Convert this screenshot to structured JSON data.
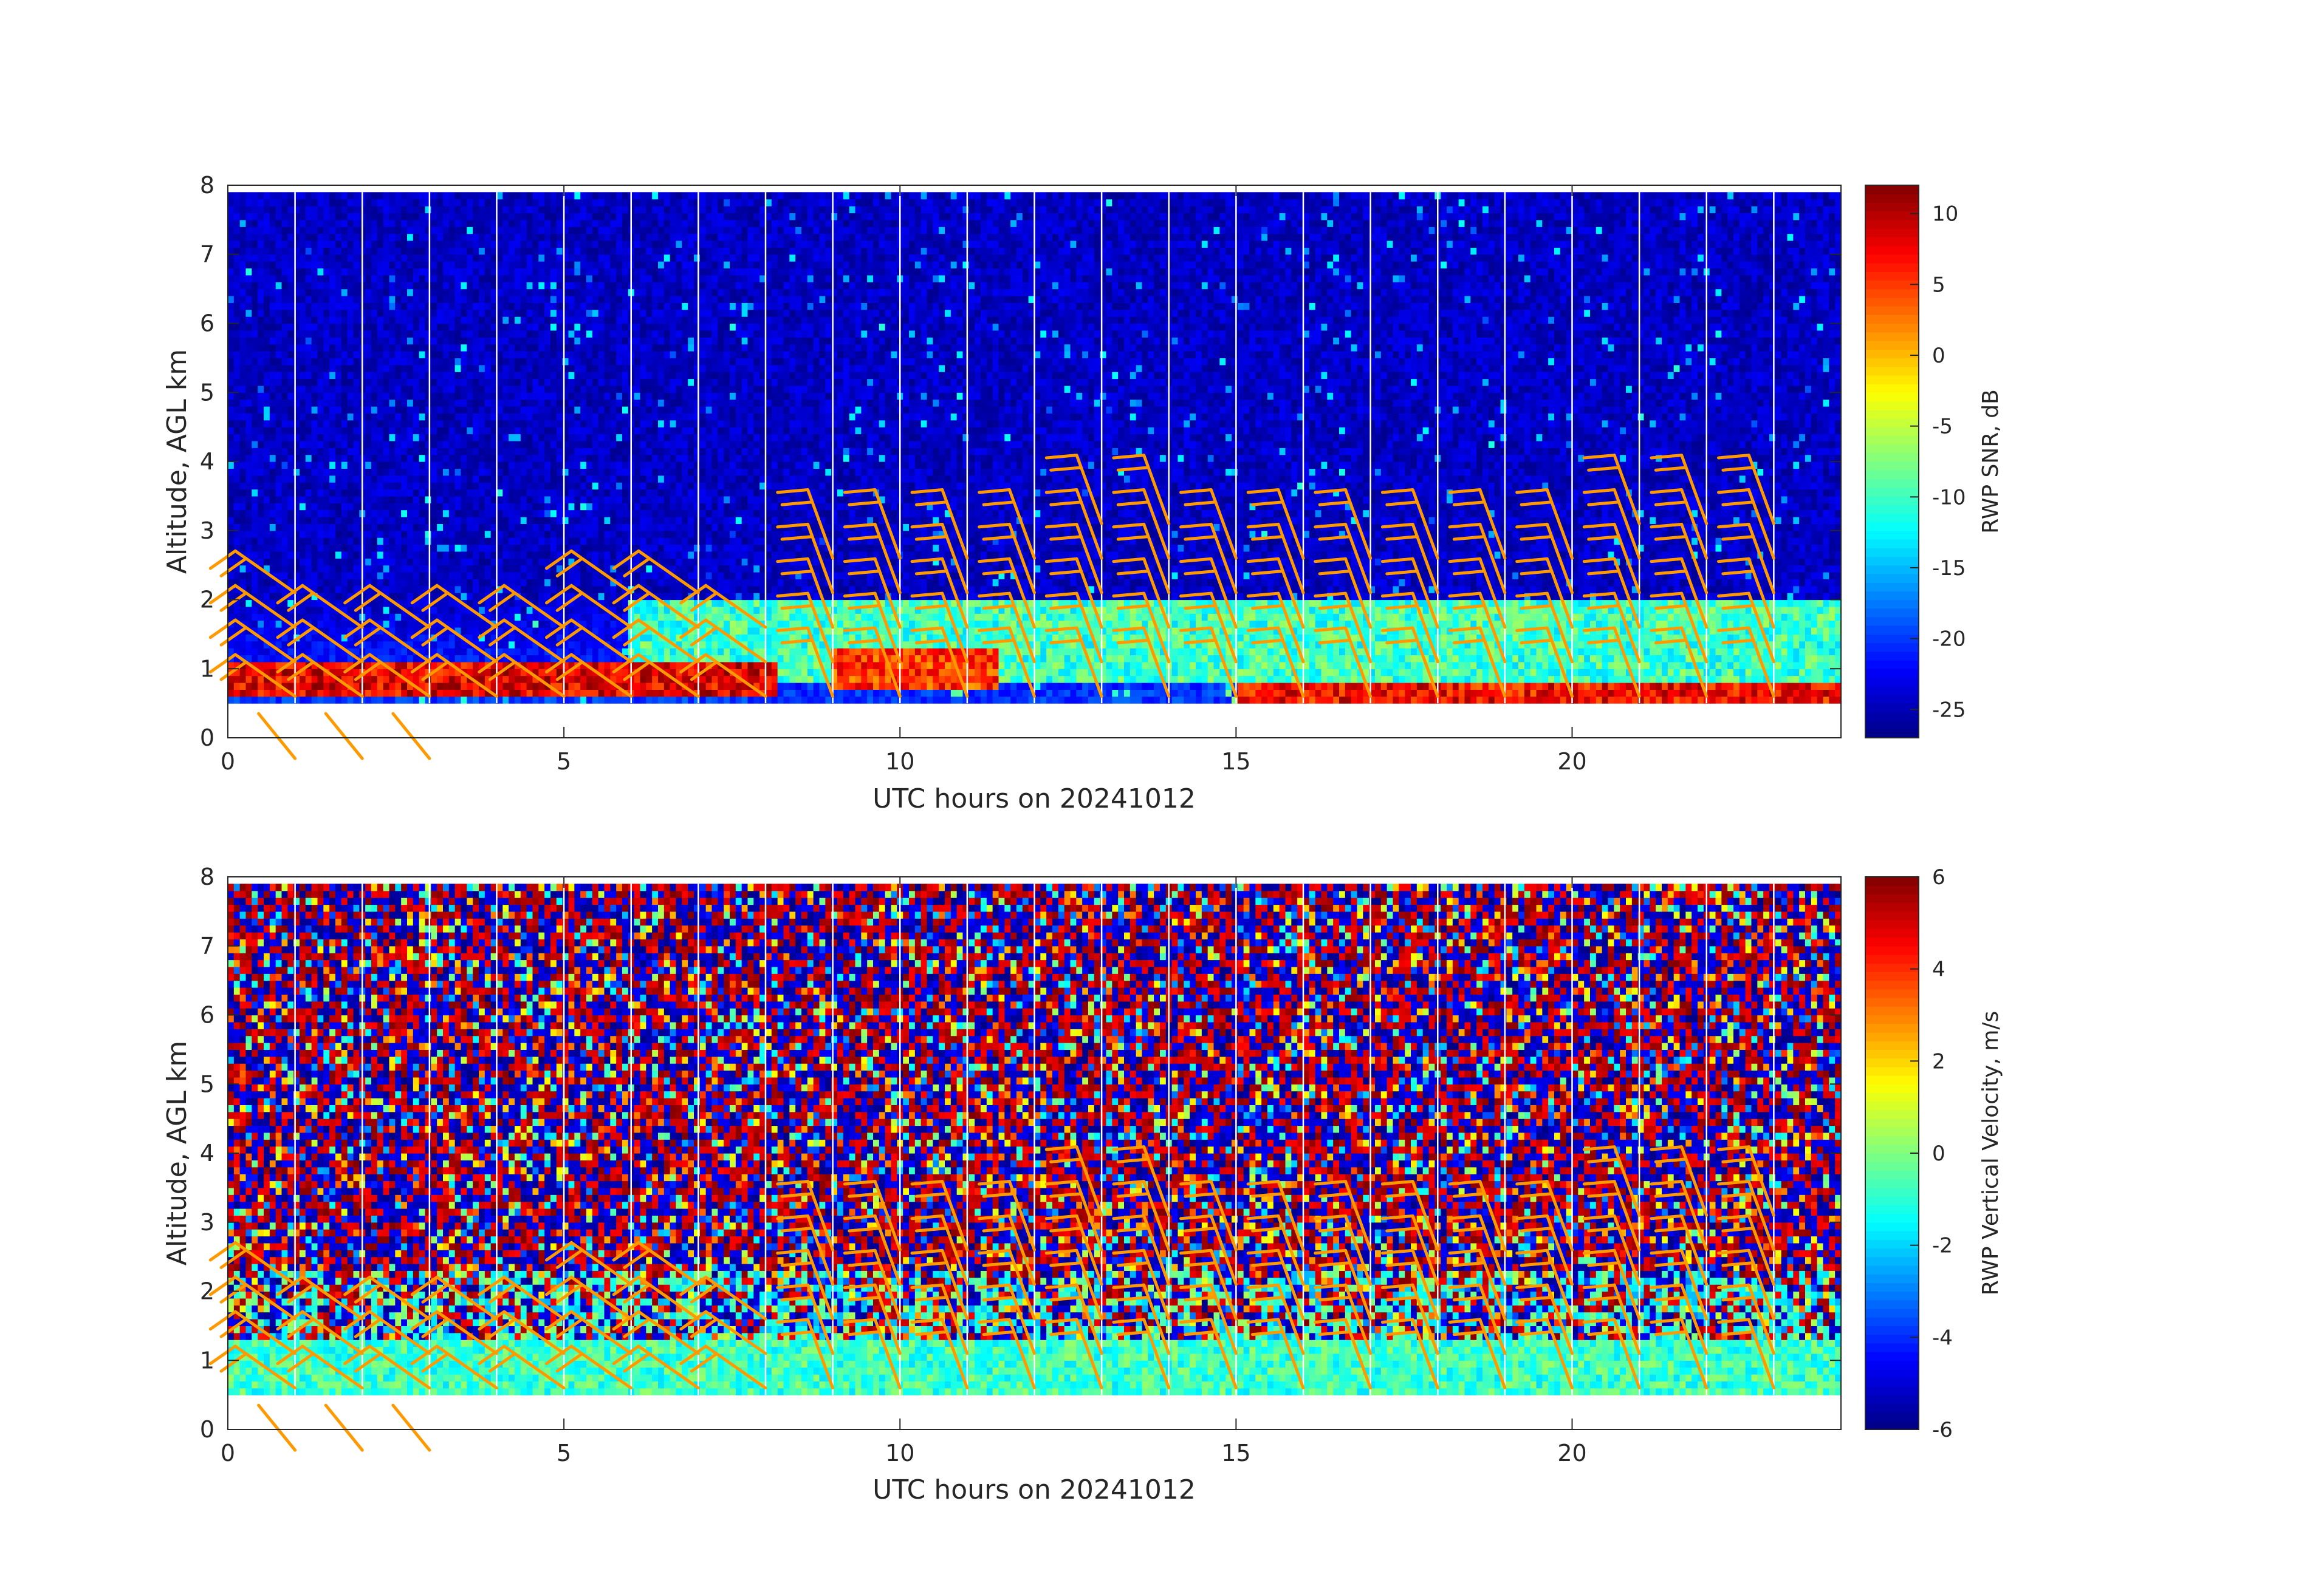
{
  "chart_data": [
    {
      "type": "heatmap",
      "variable": "snr",
      "xlabel": "UTC hours on 20241012",
      "ylabel": "Altitude, AGL km",
      "colorbar_label": "RWP SNR, dB",
      "xlim": [
        0,
        24
      ],
      "ylim": [
        0,
        8
      ],
      "xticks": [
        "0",
        "5",
        "10",
        "15",
        "20"
      ],
      "yticks": [
        "0",
        "1",
        "2",
        "3",
        "4",
        "5",
        "6",
        "7",
        "8"
      ],
      "clim": [
        -27,
        12
      ],
      "colorbar_ticks": [
        "-25",
        "-20",
        "-15",
        "-10",
        "-5",
        "0",
        "5",
        "10"
      ],
      "colormap": "jet",
      "data_altitude_range_km": [
        0.5,
        7.9
      ],
      "grid": false,
      "overlay": "wind barbs (orange)",
      "features": [
        {
          "description": "strong echo layer",
          "hours": [
            0,
            8.2
          ],
          "altitude_km": [
            0.6,
            1.1
          ],
          "snr_db": 8
        },
        {
          "description": "enhanced layer",
          "hours": [
            9,
            11.5
          ],
          "altitude_km": [
            0.7,
            1.3
          ],
          "snr_db": 5
        },
        {
          "description": "strong surface layer",
          "hours": [
            15,
            24
          ],
          "altitude_km": [
            0.5,
            0.8
          ],
          "snr_db": 7
        },
        {
          "description": "moderate echoes",
          "hours": [
            6,
            24
          ],
          "altitude_km": [
            0.8,
            2.0
          ],
          "snr_db": -10
        },
        {
          "description": "background noise",
          "hours": [
            0,
            24
          ],
          "altitude_km": [
            2,
            7.9
          ],
          "snr_db": -24
        }
      ]
    },
    {
      "type": "heatmap",
      "variable": "w",
      "xlabel": "UTC hours on 20241012",
      "ylabel": "Altitude, AGL km",
      "colorbar_label": "RWP Vertical Velocity, m/s",
      "xlim": [
        0,
        24
      ],
      "ylim": [
        0,
        8
      ],
      "xticks": [
        "0",
        "5",
        "10",
        "15",
        "20"
      ],
      "yticks": [
        "0",
        "1",
        "2",
        "3",
        "4",
        "5",
        "6",
        "7",
        "8"
      ],
      "clim": [
        -6,
        6
      ],
      "colorbar_ticks": [
        "-6",
        "-4",
        "-2",
        "0",
        "2",
        "4",
        "6"
      ],
      "colormap": "jet",
      "data_altitude_range_km": [
        0.5,
        7.9
      ],
      "grid": false,
      "overlay": "wind barbs (orange)",
      "features": [
        {
          "description": "near-zero velocity boundary layer",
          "hours": [
            0,
            24
          ],
          "altitude_km": [
            0.5,
            1.3
          ],
          "w_ms": -0.5
        },
        {
          "description": "noisy velocities aloft",
          "hours": [
            0,
            24
          ],
          "altitude_km": [
            1.3,
            7.9
          ],
          "w_ms": "±6"
        }
      ]
    }
  ],
  "wind_barbs": {
    "color": "#ff9900",
    "hours": [
      1,
      2,
      3,
      4,
      5,
      6,
      7,
      8,
      9,
      10,
      11,
      12,
      13,
      14,
      15,
      16,
      17,
      18,
      19,
      20,
      21,
      22,
      23
    ],
    "altitudes_km": [
      0.6,
      1.1,
      1.6,
      2.1,
      2.6,
      3.1
    ],
    "max_altitude_km_by_hour": [
      2.2,
      2.0,
      1.8,
      1.9,
      1.8,
      2.3,
      2.4,
      2.0,
      2.7,
      2.7,
      2.9,
      3.0,
      3.2,
      3.2,
      2.6,
      2.6,
      2.6,
      2.6,
      2.6,
      2.6,
      3.2,
      3.2,
      3.2
    ]
  }
}
